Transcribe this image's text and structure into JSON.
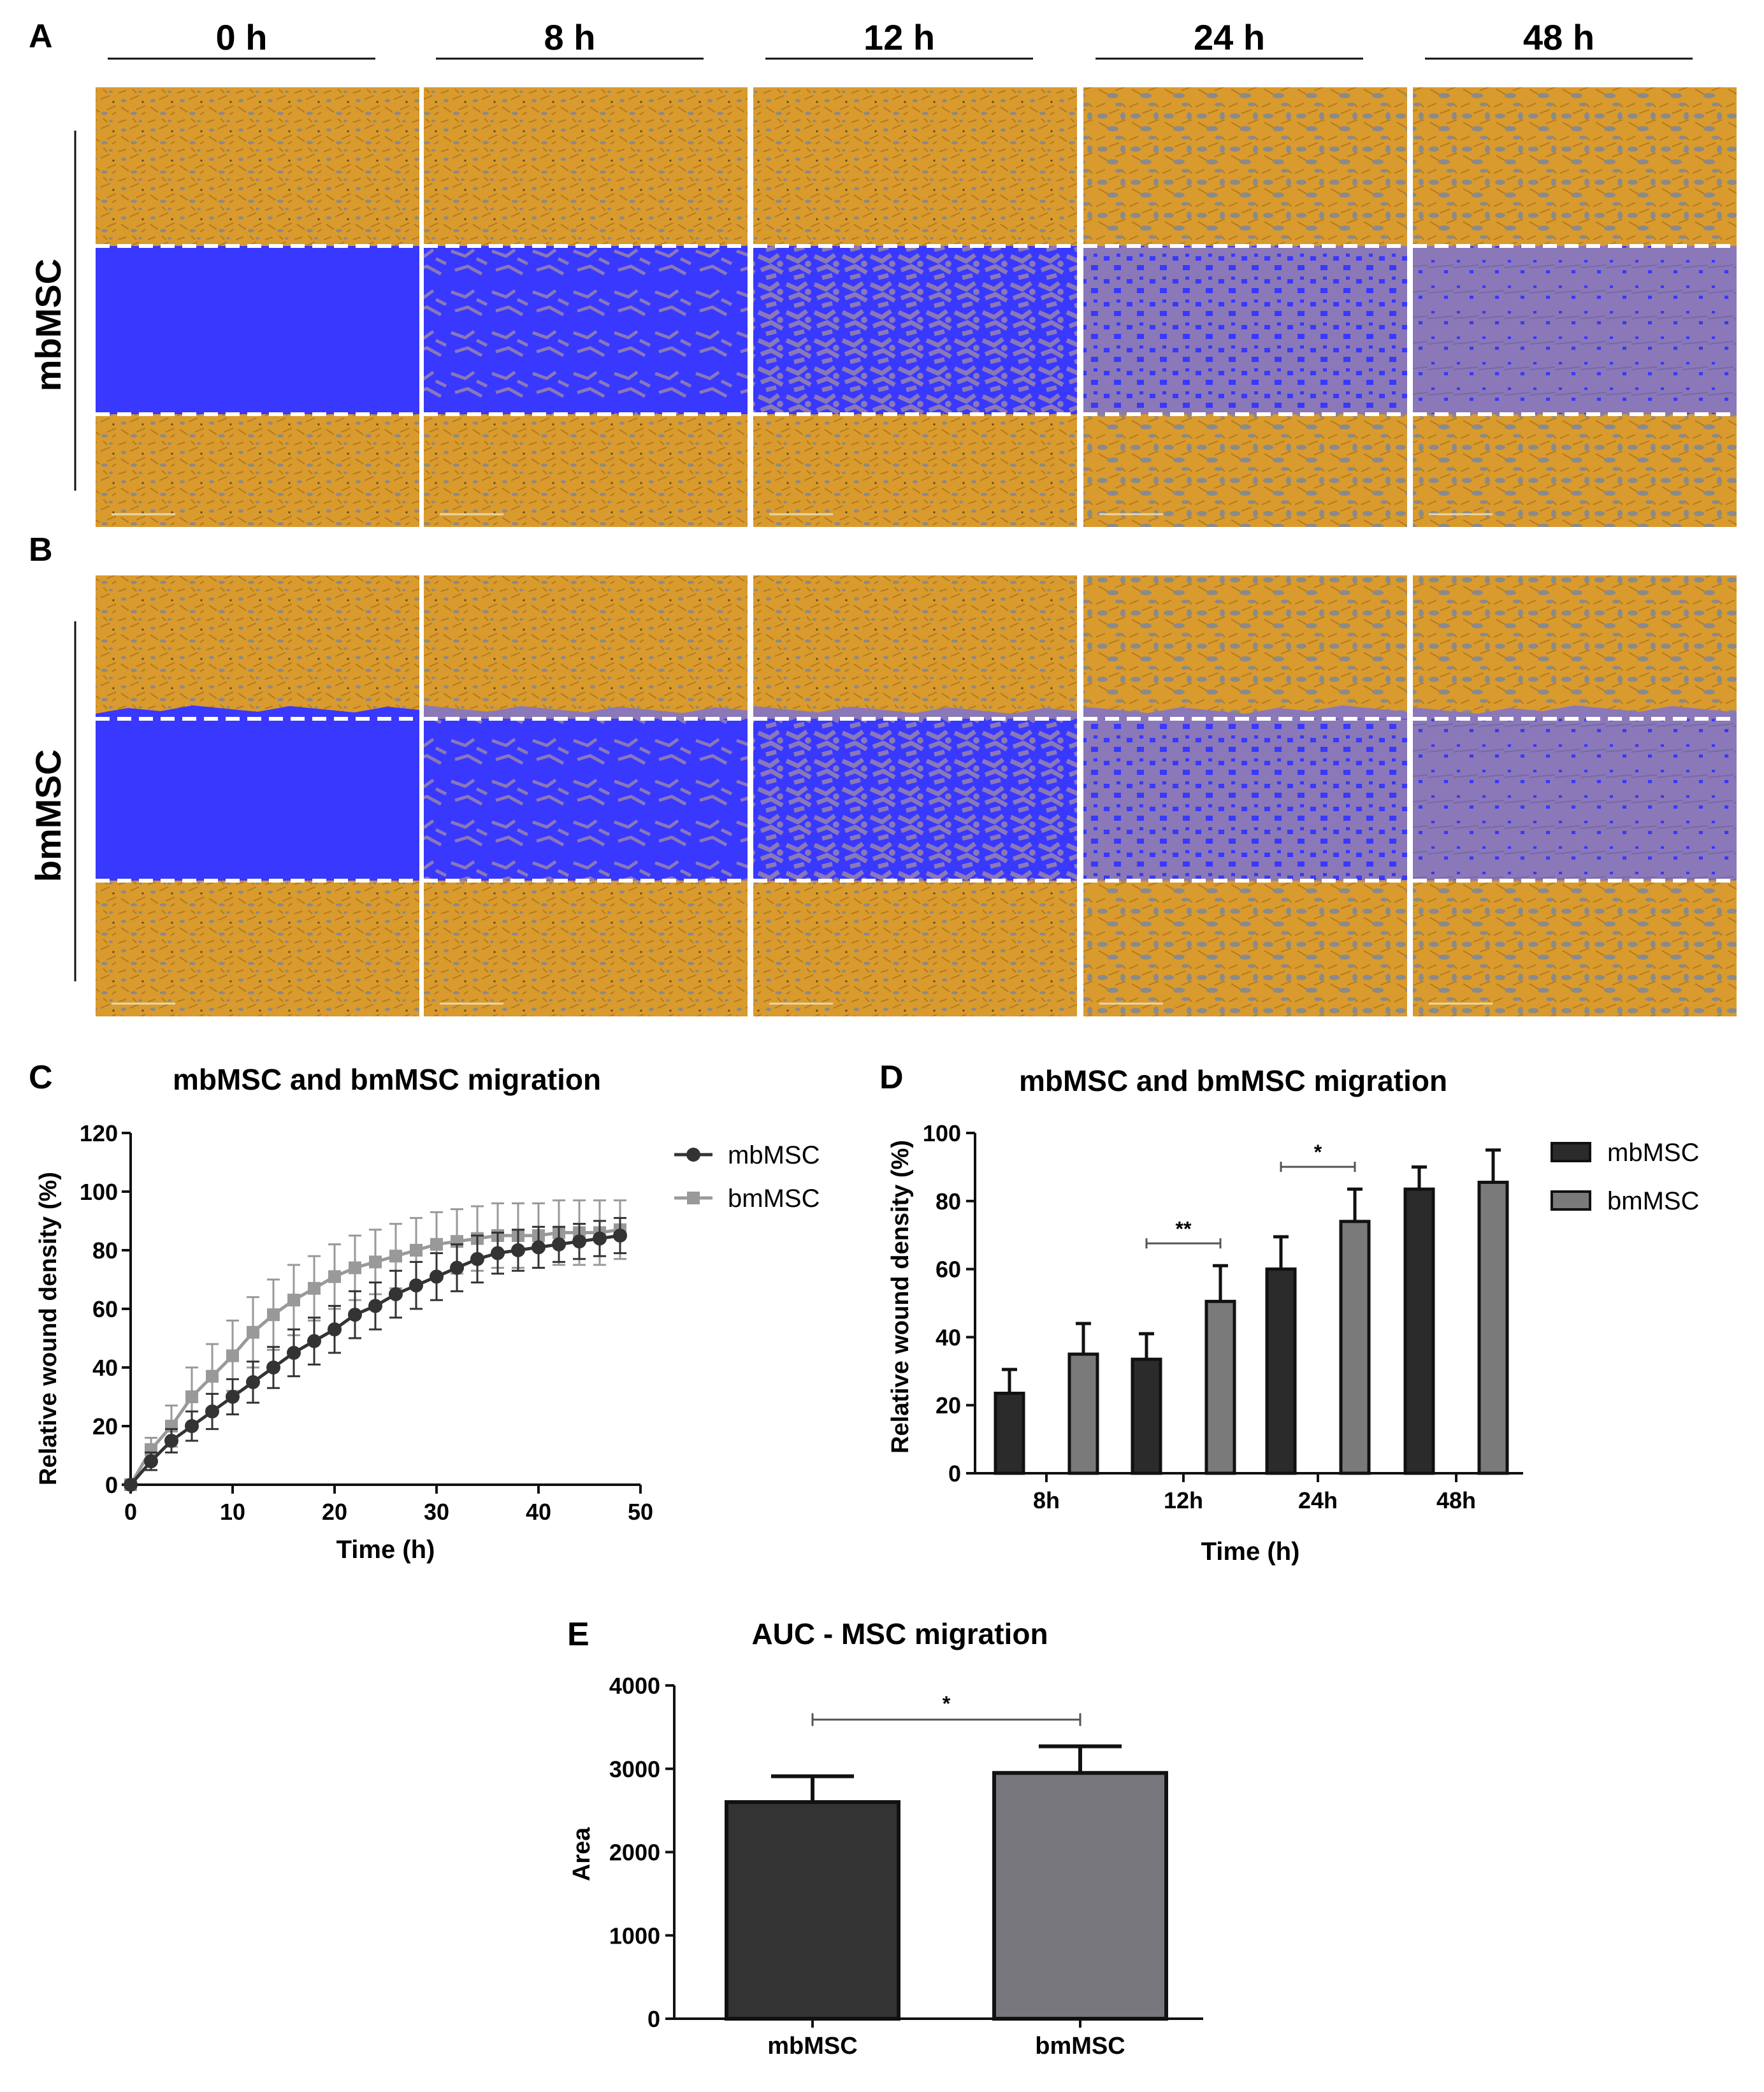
{
  "panel_letters": {
    "a": "A",
    "b": "B",
    "c": "C",
    "d": "D",
    "e": "E"
  },
  "time_headers": [
    "0 h",
    "8 h",
    "12 h",
    "24 h",
    "48 h"
  ],
  "row_labels": {
    "top": "mbMSC",
    "bottom": "bmMSC"
  },
  "colors": {
    "tissue": "#d99a2e",
    "tissue_dark": "#b57a1c",
    "gray_cells": "#8a8a8a",
    "wound": "#3838ff",
    "invaded": "#8a78b8",
    "mbMSC_dark": "#333333",
    "bmMSC_gray": "#999999",
    "bar_mb": "#2b2b2b",
    "bar_bm": "#7a7a7a",
    "bar_e_mb": "#333333",
    "bar_e_bm": "#77777d"
  },
  "chart_data": [
    {
      "id": "C",
      "type": "line",
      "title": "mbMSC and bmMSC migration",
      "xlabel": "Time (h)",
      "ylabel": "Relative wound density (%)",
      "xlim": [
        0,
        50
      ],
      "ylim": [
        0,
        120
      ],
      "xticks": [
        0,
        10,
        20,
        30,
        40,
        50
      ],
      "yticks": [
        0,
        20,
        40,
        60,
        80,
        100,
        120
      ],
      "legend_position": "right",
      "x": [
        0,
        2,
        4,
        6,
        8,
        10,
        12,
        14,
        16,
        18,
        20,
        22,
        24,
        26,
        28,
        30,
        32,
        34,
        36,
        38,
        40,
        42,
        44,
        46,
        48
      ],
      "series": [
        {
          "name": "mbMSC",
          "values": [
            0,
            8,
            15,
            20,
            25,
            30,
            35,
            40,
            45,
            49,
            53,
            58,
            61,
            65,
            68,
            71,
            74,
            77,
            79,
            80,
            81,
            82,
            83,
            84,
            85
          ],
          "errors": [
            0,
            3,
            4,
            5,
            6,
            6,
            7,
            7,
            8,
            8,
            8,
            8,
            8,
            8,
            8,
            8,
            8,
            8,
            7,
            7,
            7,
            6,
            6,
            6,
            6
          ]
        },
        {
          "name": "bmMSC",
          "values": [
            0,
            12,
            20,
            30,
            37,
            44,
            52,
            58,
            63,
            67,
            71,
            74,
            76,
            78,
            80,
            82,
            83,
            84,
            85,
            85,
            85,
            86,
            86,
            86,
            87
          ],
          "errors": [
            0,
            4,
            7,
            10,
            11,
            12,
            12,
            12,
            12,
            11,
            11,
            11,
            11,
            11,
            11,
            11,
            11,
            11,
            11,
            11,
            11,
            11,
            11,
            11,
            10
          ]
        }
      ]
    },
    {
      "id": "D",
      "type": "bar",
      "title": "mbMSC and bmMSC migration",
      "xlabel": "Time (h)",
      "ylabel": "Relative wound density (%)",
      "ylim": [
        0,
        100
      ],
      "yticks": [
        0,
        20,
        40,
        60,
        80,
        100
      ],
      "categories": [
        "8h",
        "12h",
        "24h",
        "48h"
      ],
      "series": [
        {
          "name": "mbMSC",
          "values": [
            23.5,
            33.5,
            60,
            83.5
          ],
          "errors": [
            7,
            7.5,
            9.5,
            6.5
          ]
        },
        {
          "name": "bmMSC",
          "values": [
            35,
            50.5,
            74,
            85.5
          ],
          "errors": [
            9,
            10.5,
            9.5,
            9.5
          ]
        }
      ],
      "significance": [
        {
          "category": "12h",
          "label": "**"
        },
        {
          "category": "24h",
          "label": "*"
        }
      ]
    },
    {
      "id": "E",
      "type": "bar",
      "title": "AUC - MSC migration",
      "xlabel": "",
      "ylabel": "Area",
      "ylim": [
        0,
        4000
      ],
      "yticks": [
        0,
        1000,
        2000,
        3000,
        4000
      ],
      "categories": [
        "mbMSC",
        "bmMSC"
      ],
      "values": [
        2600,
        2950
      ],
      "errors": [
        310,
        320
      ],
      "significance": [
        {
          "between": [
            "mbMSC",
            "bmMSC"
          ],
          "label": "*"
        }
      ]
    }
  ]
}
